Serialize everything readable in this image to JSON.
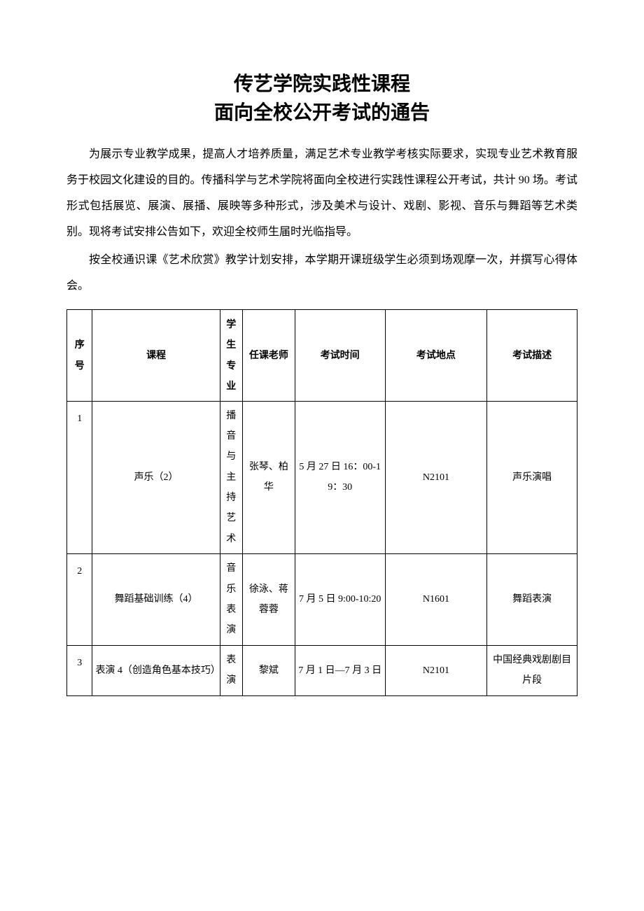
{
  "title_line1": "传艺学院实践性课程",
  "title_line2": "面向全校公开考试的通告",
  "paragraph1": "为展示专业教学成果，提高人才培养质量，满足艺术专业教学考核实际要求，实现专业艺术教育服务于校园文化建设的目的。传播科学与艺术学院将面向全校进行实践性课程公开考试，共计 90 场。考试形式包括展览、展演、展播、展映等多种形式，涉及美术与设计、戏剧、影视、音乐与舞蹈等艺术类别。现将考试安排公告如下，欢迎全校师生届时光临指导。",
  "paragraph2": "按全校通识课《艺术欣赏》教学计划安排，本学期开课班级学生必须到场观摩一次，并撰写心得体会。",
  "table": {
    "columns": [
      "序号",
      "课程",
      "学生专业",
      "任课老师",
      "考试时间",
      "考试地点",
      "考试描述"
    ],
    "rows": [
      {
        "idx": "1",
        "course": "声乐（2）",
        "major": "播音与主持艺术",
        "teacher": "张琴、柏华",
        "time": "5 月 27 日 16：00-19：30",
        "place": "N2101",
        "desc": "声乐演唱"
      },
      {
        "idx": "2",
        "course": "舞蹈基础训练（4）",
        "major": "音乐表演",
        "teacher": "徐泳、蒋蓉蓉",
        "time": "7 月 5 日 9:00-10:20",
        "place": "N1601",
        "desc": "舞蹈表演"
      },
      {
        "idx": "3",
        "course": "表演 4（创造角色基本技巧）",
        "major": "表演",
        "teacher": "黎斌",
        "time": "7 月 1 日—7 月 3 日",
        "place": "N2101",
        "desc": "中国经典戏剧剧目片段"
      }
    ]
  }
}
